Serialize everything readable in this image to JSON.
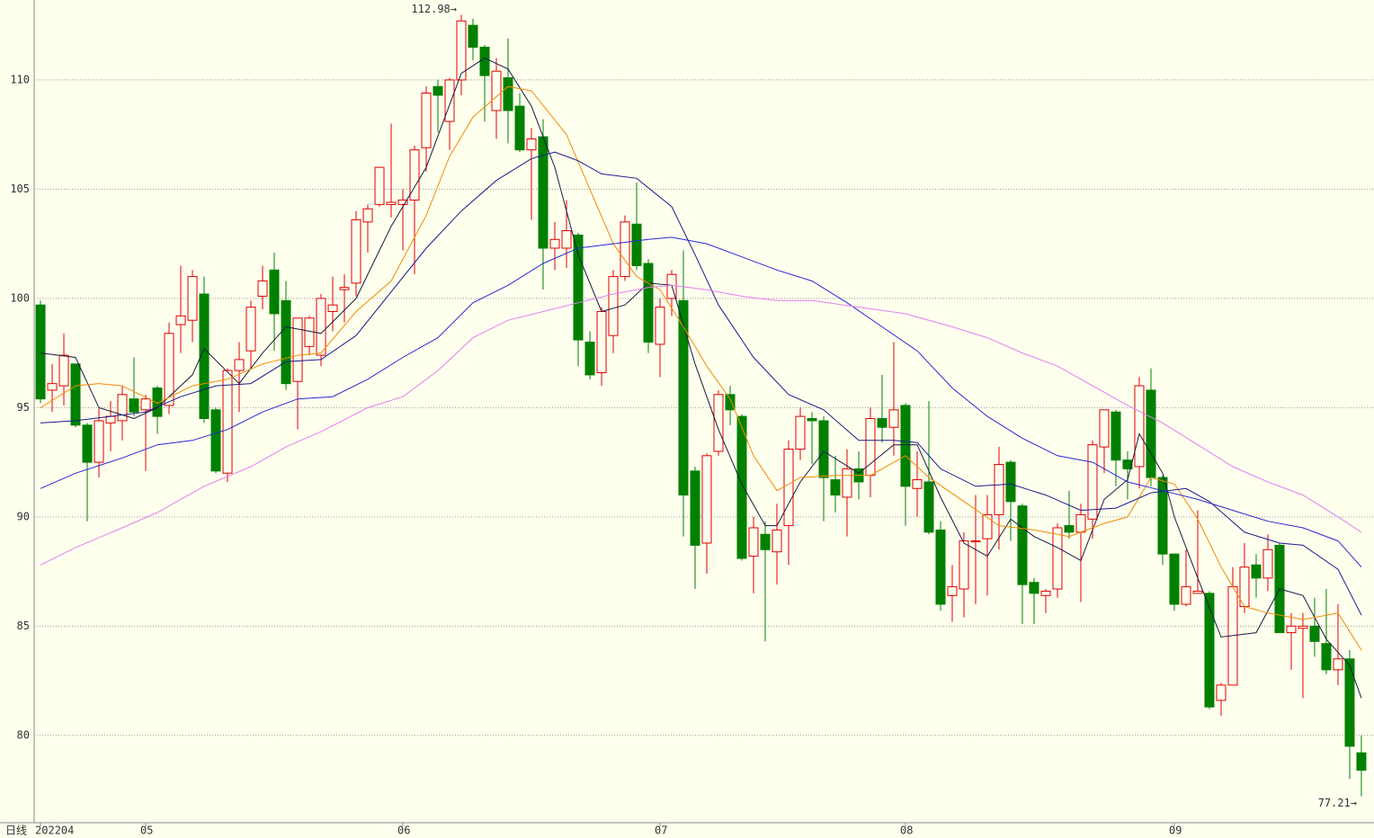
{
  "chart_data": {
    "type": "candlestick",
    "period_label": "日线",
    "open": [
      99.7,
      95.8,
      96.0,
      97.0,
      94.2,
      92.5,
      94.3,
      94.4,
      95.4,
      94.9,
      95.9,
      95.1,
      98.8,
      99.0,
      100.2,
      94.9,
      92.0,
      96.7,
      97.6,
      100.1,
      101.3,
      99.9,
      96.2,
      97.8,
      97.4,
      99.4,
      100.4,
      100.7,
      103.5,
      104.3,
      104.3,
      104.3,
      104.5,
      106.9,
      109.7,
      108.1,
      110.0,
      112.5,
      111.5,
      108.6,
      110.1,
      108.8,
      106.8,
      107.4,
      102.3,
      102.3,
      102.9,
      98.0,
      96.6,
      98.3,
      101.0,
      103.4,
      101.6,
      97.9,
      100.0,
      99.9,
      92.1,
      88.8,
      93.0,
      95.6,
      94.6,
      88.2,
      89.2,
      88.4,
      89.6,
      93.1,
      94.5,
      94.4,
      91.7,
      90.9,
      92.2,
      91.9,
      94.5,
      94.1,
      95.1,
      91.3,
      91.6,
      89.4,
      86.4,
      86.7,
      88.9,
      89.0,
      90.1,
      92.5,
      90.5,
      87.0,
      86.4,
      86.7,
      89.6,
      89.3,
      89.9,
      93.2,
      94.8,
      92.6,
      92.3,
      95.8,
      91.8,
      88.3,
      86.0,
      86.5,
      86.5,
      81.6,
      82.3,
      85.9,
      87.8,
      87.2,
      88.7,
      84.7,
      84.9,
      85.0,
      84.2,
      83.0,
      83.5,
      79.2
    ],
    "high": [
      99.9,
      97.0,
      98.4,
      97.0,
      94.3,
      95.0,
      95.3,
      96.0,
      97.3,
      95.6,
      96.0,
      98.9,
      101.5,
      101.3,
      101.0,
      95.0,
      96.8,
      98.0,
      99.9,
      101.5,
      102.1,
      100.8,
      99.1,
      99.2,
      100.2,
      101.0,
      101.1,
      104.0,
      104.3,
      106.0,
      108.0,
      105.0,
      107.0,
      109.7,
      110.0,
      110.1,
      112.98,
      112.8,
      111.6,
      111.0,
      111.9,
      109.4,
      107.8,
      108.2,
      103.5,
      104.5,
      103.0,
      98.5,
      99.6,
      101.3,
      103.8,
      105.3,
      101.8,
      100.0,
      101.3,
      102.2,
      92.3,
      92.9,
      95.8,
      96.0,
      94.7,
      90.0,
      89.8,
      90.6,
      93.5,
      95.0,
      94.8,
      94.6,
      92.8,
      93.1,
      93.0,
      95.0,
      96.5,
      98.0,
      95.2,
      93.0,
      95.3,
      89.8,
      87.8,
      89.3,
      91.0,
      91.0,
      93.2,
      92.6,
      90.6,
      87.2,
      86.7,
      89.7,
      91.2,
      90.6,
      93.5,
      94.9,
      94.9,
      93.0,
      96.4,
      96.8,
      91.9,
      88.3,
      88.5,
      90.3,
      86.6,
      82.4,
      87.7,
      88.8,
      88.3,
      89.2,
      88.8,
      85.6,
      85.6,
      86.3,
      86.7,
      86.0,
      83.9,
      80.0
    ],
    "low": [
      95.2,
      94.8,
      95.1,
      94.1,
      89.8,
      91.8,
      93.0,
      93.5,
      94.6,
      92.1,
      93.8,
      94.7,
      97.5,
      98.0,
      94.3,
      92.0,
      91.6,
      94.8,
      96.8,
      99.5,
      97.6,
      95.8,
      94.0,
      97.4,
      96.9,
      98.5,
      98.9,
      100.1,
      102.1,
      104.2,
      103.7,
      102.2,
      101.1,
      105.8,
      107.6,
      106.8,
      109.3,
      110.9,
      108.1,
      107.3,
      107.1,
      106.7,
      103.6,
      100.4,
      101.3,
      101.4,
      96.9,
      96.3,
      96.0,
      97.5,
      100.8,
      101.3,
      97.5,
      96.4,
      99.2,
      89.1,
      86.7,
      87.4,
      92.8,
      94.2,
      88.0,
      86.5,
      84.3,
      86.9,
      87.8,
      92.6,
      92.4,
      89.8,
      90.2,
      89.1,
      90.8,
      90.9,
      93.4,
      92.8,
      89.6,
      90.0,
      89.2,
      85.7,
      85.2,
      85.4,
      86.0,
      86.4,
      88.5,
      88.9,
      85.1,
      85.1,
      85.6,
      86.3,
      89.0,
      86.1,
      89.0,
      92.0,
      91.4,
      90.8,
      91.3,
      91.4,
      87.8,
      85.7,
      85.9,
      86.5,
      81.2,
      80.9,
      82.3,
      85.6,
      86.3,
      86.6,
      84.7,
      83.0,
      81.7,
      83.6,
      82.8,
      82.3,
      78.0,
      77.21
    ],
    "close": [
      95.4,
      96.1,
      97.4,
      94.2,
      92.5,
      94.4,
      94.6,
      95.6,
      94.8,
      95.4,
      94.6,
      98.4,
      99.2,
      101.0,
      94.5,
      92.1,
      96.7,
      97.2,
      99.6,
      100.8,
      99.3,
      96.1,
      99.1,
      99.1,
      100.0,
      99.7,
      100.5,
      103.6,
      104.1,
      106.0,
      104.4,
      104.5,
      106.8,
      109.4,
      109.3,
      110.0,
      112.7,
      111.5,
      110.2,
      110.4,
      108.6,
      106.8,
      107.3,
      102.3,
      102.7,
      103.1,
      98.1,
      96.5,
      99.4,
      101.0,
      103.5,
      101.5,
      98.0,
      99.6,
      101.1,
      91.0,
      88.7,
      92.8,
      95.6,
      94.9,
      88.1,
      89.5,
      88.5,
      89.4,
      93.1,
      94.6,
      94.4,
      91.8,
      91.0,
      92.2,
      91.6,
      94.5,
      94.1,
      94.9,
      91.4,
      91.7,
      89.3,
      86.0,
      86.8,
      88.9,
      88.9,
      90.1,
      92.4,
      90.7,
      86.9,
      86.5,
      86.6,
      89.5,
      89.3,
      90.1,
      93.3,
      94.9,
      92.6,
      92.2,
      96.0,
      91.8,
      88.3,
      86.0,
      86.8,
      86.6,
      81.3,
      82.3,
      86.8,
      87.7,
      87.2,
      88.5,
      84.7,
      85.0,
      85.0,
      84.3,
      83.0,
      83.5,
      79.5,
      78.4
    ],
    "up_color": "#e00000",
    "down_color": "#008000",
    "moving_averages": [
      {
        "color": "#1a1a40",
        "x": [
          0,
          3,
          5,
          8,
          10,
          13,
          14,
          17,
          19,
          21,
          24,
          27,
          30,
          33,
          36,
          38,
          40,
          42,
          44,
          46,
          48,
          50,
          52,
          54,
          56,
          58,
          60,
          62,
          63,
          65,
          67,
          70,
          73,
          75,
          77,
          79,
          81,
          83,
          85,
          87,
          89,
          91,
          93,
          94,
          96,
          97,
          99,
          101,
          104,
          106,
          108,
          110,
          112,
          113
        ],
        "values": [
          97.5,
          97.3,
          95.0,
          94.5,
          95.0,
          96.5,
          97.7,
          96.1,
          97.5,
          98.7,
          98.4,
          100.0,
          103.3,
          106.0,
          110.3,
          111.0,
          110.5,
          108.8,
          106.0,
          102.0,
          99.4,
          99.7,
          100.7,
          100.6,
          97.0,
          94.0,
          91.5,
          89.6,
          89.6,
          91.6,
          93.0,
          92.0,
          93.3,
          93.3,
          90.9,
          88.8,
          88.2,
          89.9,
          89.1,
          88.6,
          88.0,
          90.8,
          91.7,
          93.8,
          92.0,
          90.0,
          87.2,
          84.5,
          84.7,
          86.7,
          86.4,
          84.4,
          83.2,
          81.7
        ]
      },
      {
        "color": "#f08c00",
        "x": [
          0,
          3,
          5,
          7,
          10,
          13,
          16,
          19,
          22,
          24,
          27,
          30,
          33,
          35,
          37,
          40,
          42,
          45,
          47,
          49,
          51,
          53,
          55,
          57,
          59,
          61,
          63,
          65,
          68,
          71,
          74,
          76,
          79,
          82,
          85,
          88,
          91,
          93,
          95,
          97,
          99,
          101,
          103,
          105,
          108,
          110,
          111,
          113
        ],
        "values": [
          95.0,
          96.0,
          96.1,
          96.0,
          95.2,
          96.0,
          96.3,
          97.0,
          97.4,
          97.5,
          99.4,
          100.8,
          103.8,
          106.5,
          108.3,
          109.7,
          109.5,
          107.5,
          105.0,
          102.5,
          101.0,
          100.4,
          98.7,
          96.9,
          95.4,
          92.8,
          91.2,
          91.8,
          91.9,
          91.9,
          92.8,
          91.8,
          90.7,
          89.6,
          89.4,
          89.1,
          89.7,
          90.0,
          91.8,
          91.5,
          89.9,
          87.7,
          85.9,
          85.6,
          85.3,
          85.5,
          85.6,
          83.9
        ]
      },
      {
        "color": "#1a1a8c",
        "x": [
          0,
          3,
          6,
          9,
          12,
          15,
          18,
          21,
          24,
          27,
          30,
          33,
          36,
          39,
          42,
          44,
          46,
          48,
          51,
          54,
          56,
          58,
          61,
          64,
          67,
          70,
          73,
          75,
          77,
          80,
          83,
          86,
          89,
          92,
          95,
          98,
          100,
          103,
          106,
          108,
          111,
          113
        ],
        "values": [
          94.3,
          94.4,
          94.6,
          94.8,
          95.5,
          96.0,
          96.1,
          97.1,
          97.2,
          98.3,
          100.3,
          102.3,
          104.0,
          105.4,
          106.4,
          106.7,
          106.3,
          105.7,
          105.5,
          104.2,
          102.0,
          99.7,
          97.3,
          95.6,
          94.9,
          93.5,
          93.5,
          93.4,
          92.2,
          91.4,
          91.5,
          91.0,
          90.3,
          90.4,
          91.1,
          91.3,
          90.7,
          89.3,
          88.8,
          88.7,
          87.6,
          85.5
        ]
      },
      {
        "color": "#2828d8",
        "x": [
          0,
          3,
          7,
          10,
          13,
          16,
          19,
          22,
          25,
          28,
          31,
          34,
          37,
          40,
          43,
          46,
          49,
          52,
          54,
          57,
          60,
          63,
          66,
          69,
          72,
          75,
          78,
          81,
          84,
          87,
          90,
          93,
          96,
          99,
          102,
          105,
          108,
          111,
          113
        ],
        "values": [
          91.3,
          92.0,
          92.7,
          93.3,
          93.5,
          94.0,
          94.8,
          95.4,
          95.5,
          96.3,
          97.3,
          98.2,
          99.8,
          100.6,
          101.6,
          102.3,
          102.5,
          102.7,
          102.8,
          102.5,
          101.9,
          101.3,
          100.8,
          99.8,
          98.7,
          97.6,
          95.9,
          94.6,
          93.6,
          92.8,
          92.5,
          91.6,
          91.2,
          90.8,
          90.3,
          89.8,
          89.5,
          88.9,
          87.7
        ]
      },
      {
        "color": "#e080f0",
        "x": [
          0,
          3,
          7,
          10,
          14,
          18,
          21,
          24,
          28,
          31,
          34,
          37,
          40,
          43,
          46,
          49,
          52,
          54,
          57,
          60,
          63,
          66,
          70,
          74,
          78,
          81,
          84,
          87,
          90,
          93,
          96,
          99,
          102,
          105,
          108,
          111,
          113
        ],
        "values": [
          87.8,
          88.6,
          89.5,
          90.2,
          91.4,
          92.3,
          93.2,
          93.9,
          95.0,
          95.5,
          96.7,
          98.2,
          99.0,
          99.4,
          99.8,
          100.2,
          100.5,
          100.6,
          100.4,
          100.1,
          99.9,
          99.9,
          99.6,
          99.3,
          98.7,
          98.2,
          97.5,
          96.9,
          96.0,
          95.1,
          94.3,
          93.3,
          92.3,
          91.6,
          91.0,
          90.0,
          89.3
        ]
      }
    ],
    "annotations": [
      {
        "label": "112.98→",
        "value": 112.98,
        "index": 36,
        "side": "top"
      },
      {
        "label": "77.21→",
        "value": 77.21,
        "index": 113,
        "side": "bottom"
      }
    ],
    "xlabels": [
      {
        "index": 0,
        "label": "202204"
      },
      {
        "index": 9,
        "label": "05"
      },
      {
        "index": 31,
        "label": "06"
      },
      {
        "index": 53,
        "label": "07"
      },
      {
        "index": 74,
        "label": "08"
      },
      {
        "index": 97,
        "label": "09"
      }
    ],
    "xlim": [
      -0.54,
      114.08
    ],
    "ylim": [
      76.0,
      113.66
    ],
    "yticks": [
      80,
      85,
      90,
      95,
      100,
      105,
      110
    ],
    "grid": true
  }
}
